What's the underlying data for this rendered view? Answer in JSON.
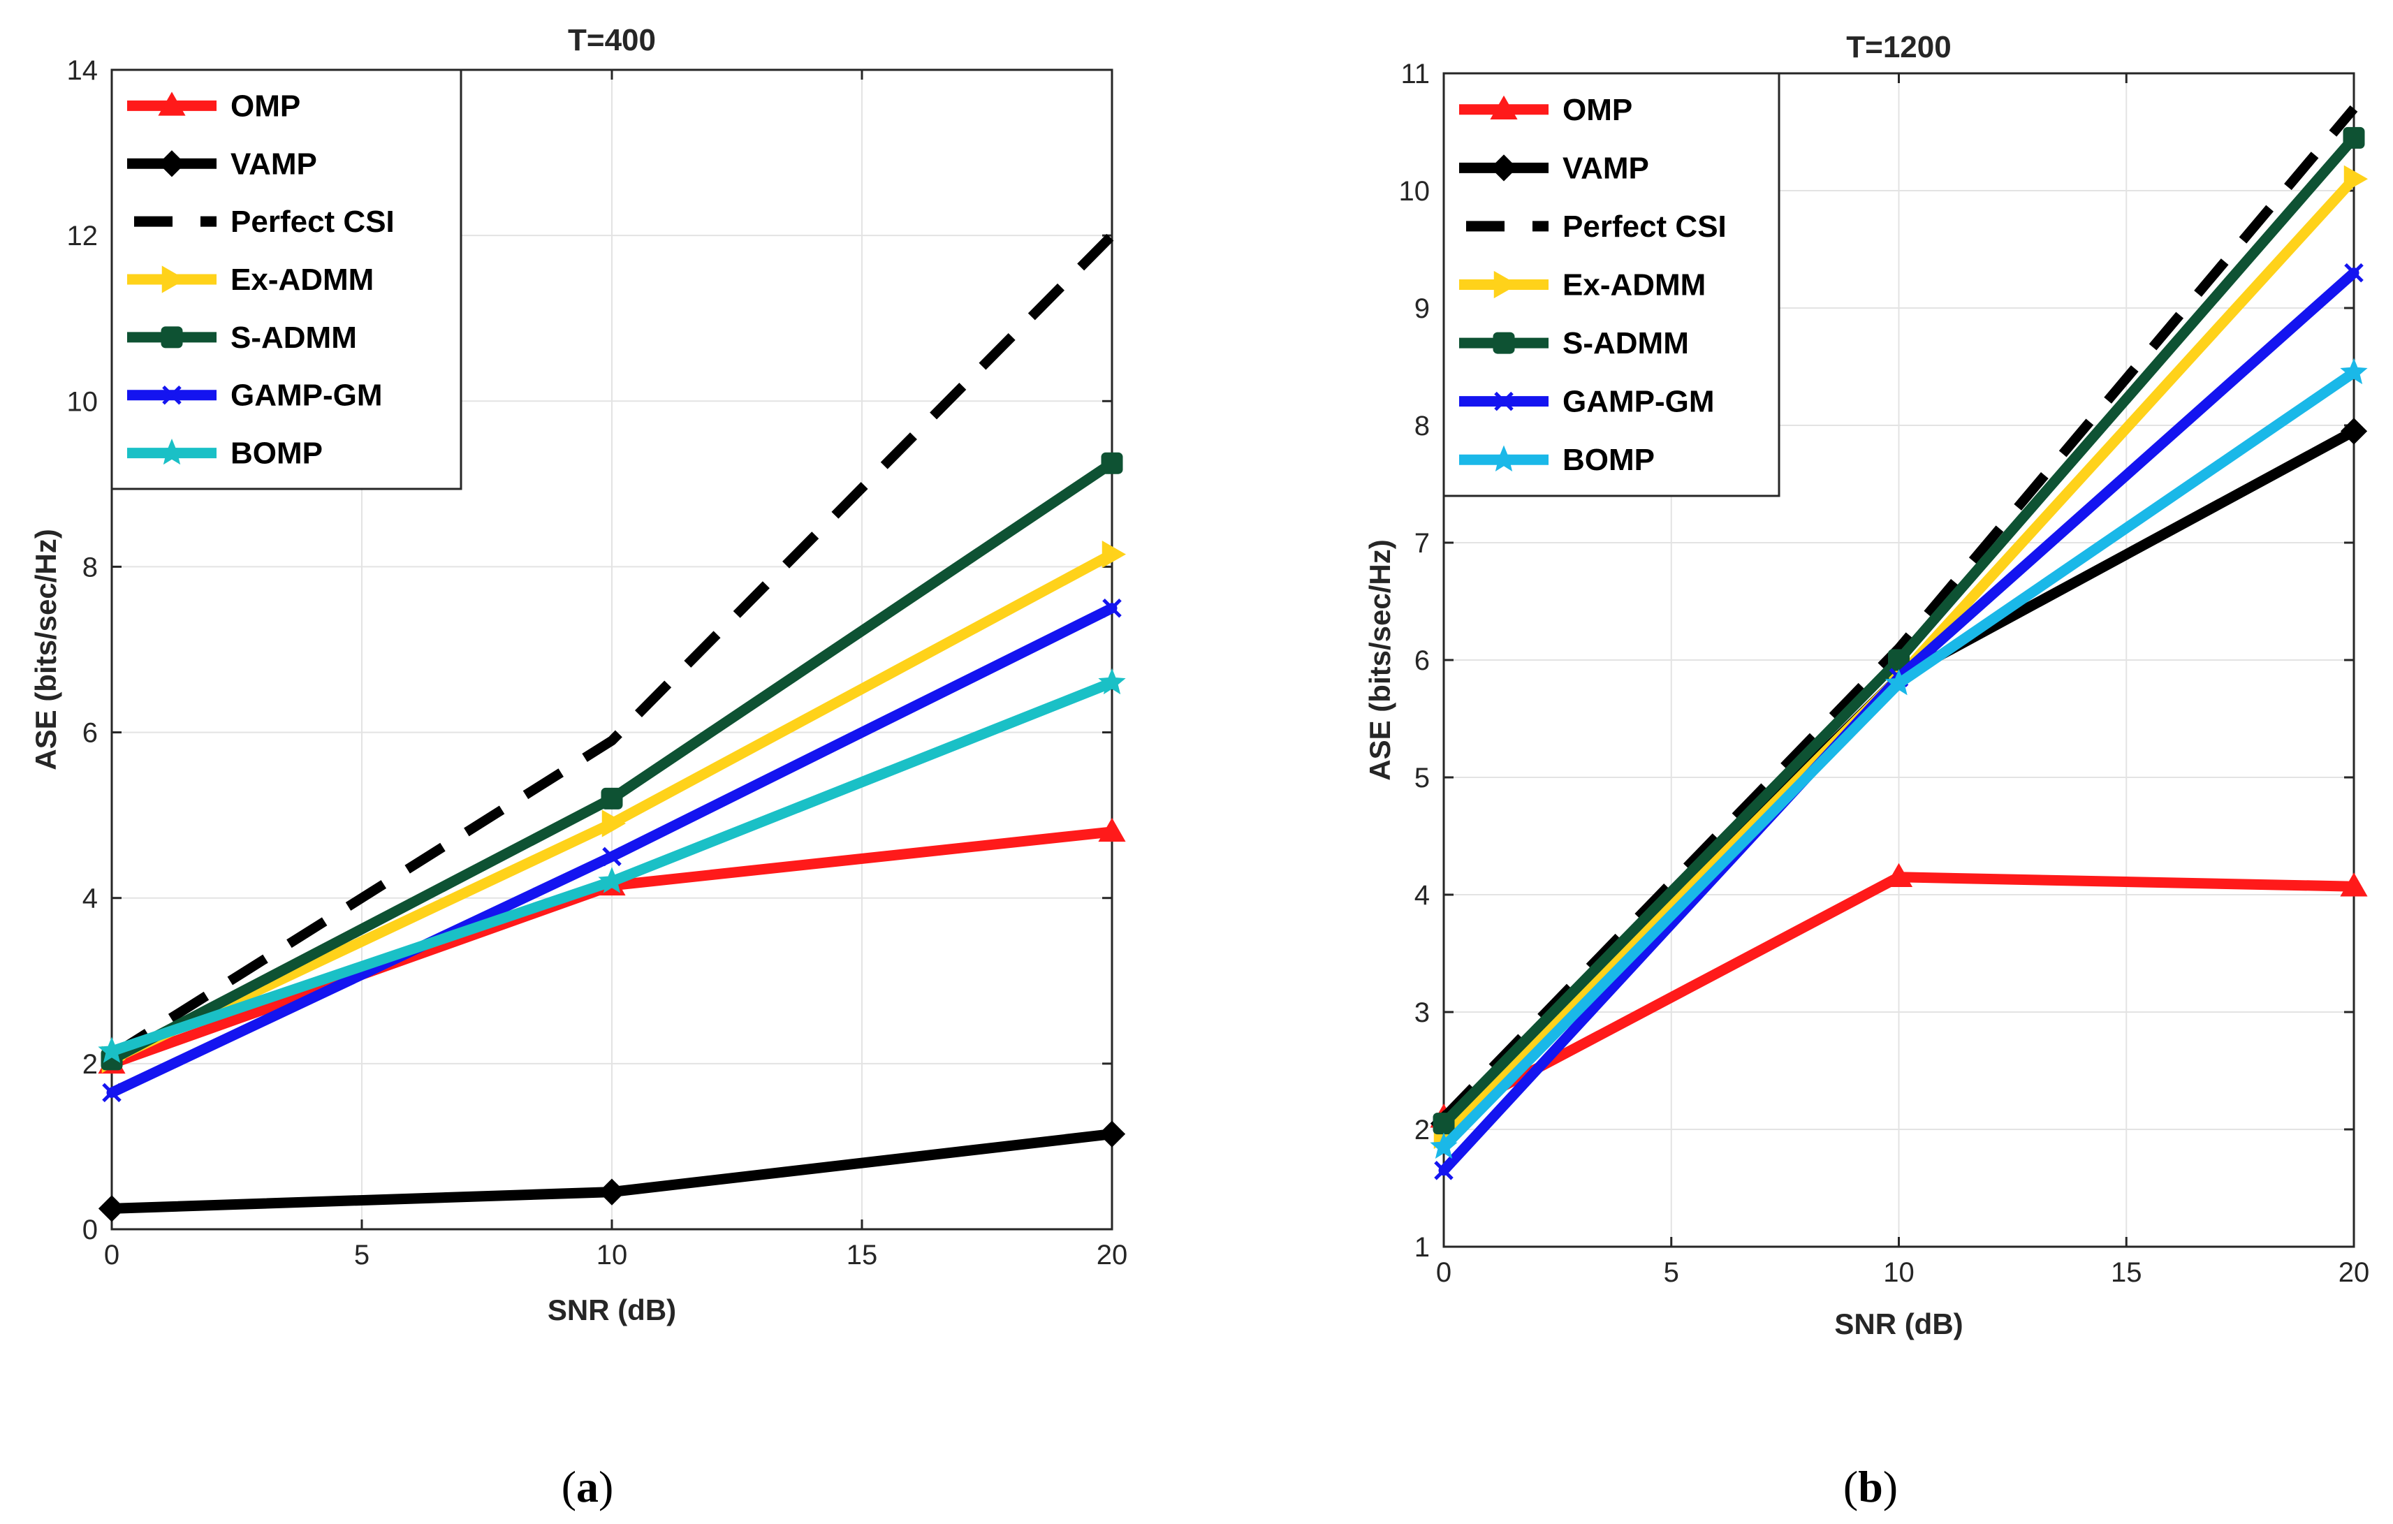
{
  "chart_data": [
    {
      "type": "line",
      "panel": "a",
      "caption_letter": "a",
      "title": "T=400",
      "xlabel": "SNR (dB)",
      "ylabel": "ASE (bits/sec/Hz)",
      "xlim": [
        0,
        20
      ],
      "ylim": [
        0,
        14
      ],
      "xticks": [
        0,
        5,
        10,
        15,
        20
      ],
      "yticks": [
        0,
        2,
        4,
        6,
        8,
        10,
        12,
        14
      ],
      "grid": true,
      "legend_position": "top-left",
      "x": [
        0,
        10,
        20
      ],
      "series": [
        {
          "name": "OMP",
          "values": [
            2.0,
            4.15,
            4.8
          ],
          "color": "#ff1a1a",
          "marker": "triangle",
          "dash": "solid"
        },
        {
          "name": "VAMP",
          "values": [
            0.25,
            0.45,
            1.15
          ],
          "color": "#000000",
          "marker": "diamond",
          "dash": "solid"
        },
        {
          "name": "Perfect CSI",
          "values": [
            2.1,
            5.9,
            12.0
          ],
          "color": "#000000",
          "marker": "none",
          "dash": "dashed"
        },
        {
          "name": "Ex-ADMM",
          "values": [
            2.05,
            4.9,
            8.15
          ],
          "color": "#ffd21a",
          "marker": "triangle-right",
          "dash": "solid"
        },
        {
          "name": "S-ADMM",
          "values": [
            2.05,
            5.2,
            9.25
          ],
          "color": "#0e5233",
          "marker": "square",
          "dash": "solid"
        },
        {
          "name": "GAMP-GM",
          "values": [
            1.65,
            4.5,
            7.5
          ],
          "color": "#1414f0",
          "marker": "x",
          "dash": "solid"
        },
        {
          "name": "BOMP",
          "values": [
            2.15,
            4.2,
            6.6
          ],
          "color": "#1ac0c6",
          "marker": "star",
          "dash": "solid"
        }
      ]
    },
    {
      "type": "line",
      "panel": "b",
      "caption_letter": "b",
      "title": "T=1200",
      "xlabel": "SNR (dB)",
      "ylabel": "ASE (bits/sec/Hz)",
      "xlim": [
        0,
        20
      ],
      "ylim": [
        1,
        11
      ],
      "xticks": [
        0,
        5,
        10,
        15,
        20
      ],
      "yticks": [
        1,
        2,
        3,
        4,
        5,
        6,
        7,
        8,
        9,
        10,
        11
      ],
      "grid": true,
      "legend_position": "top-left",
      "x": [
        0,
        10,
        20
      ],
      "series": [
        {
          "name": "OMP",
          "values": [
            2.1,
            4.15,
            4.07
          ],
          "color": "#ff1a1a",
          "marker": "triangle",
          "dash": "solid"
        },
        {
          "name": "VAMP",
          "values": [
            2.05,
            5.85,
            7.95
          ],
          "color": "#000000",
          "marker": "diamond",
          "dash": "solid"
        },
        {
          "name": "Perfect CSI",
          "values": [
            2.1,
            6.1,
            10.7
          ],
          "color": "#000000",
          "marker": "none",
          "dash": "dashed"
        },
        {
          "name": "Ex-ADMM",
          "values": [
            1.95,
            5.85,
            10.1
          ],
          "color": "#ffd21a",
          "marker": "triangle-right",
          "dash": "solid"
        },
        {
          "name": "S-ADMM",
          "values": [
            2.05,
            6.0,
            10.45
          ],
          "color": "#0e5233",
          "marker": "square",
          "dash": "solid"
        },
        {
          "name": "GAMP-GM",
          "values": [
            1.65,
            5.85,
            9.3
          ],
          "color": "#1414f0",
          "marker": "x",
          "dash": "solid"
        },
        {
          "name": "BOMP",
          "values": [
            1.85,
            5.8,
            8.45
          ],
          "color": "#1ab8e8",
          "marker": "star",
          "dash": "solid"
        }
      ]
    }
  ]
}
